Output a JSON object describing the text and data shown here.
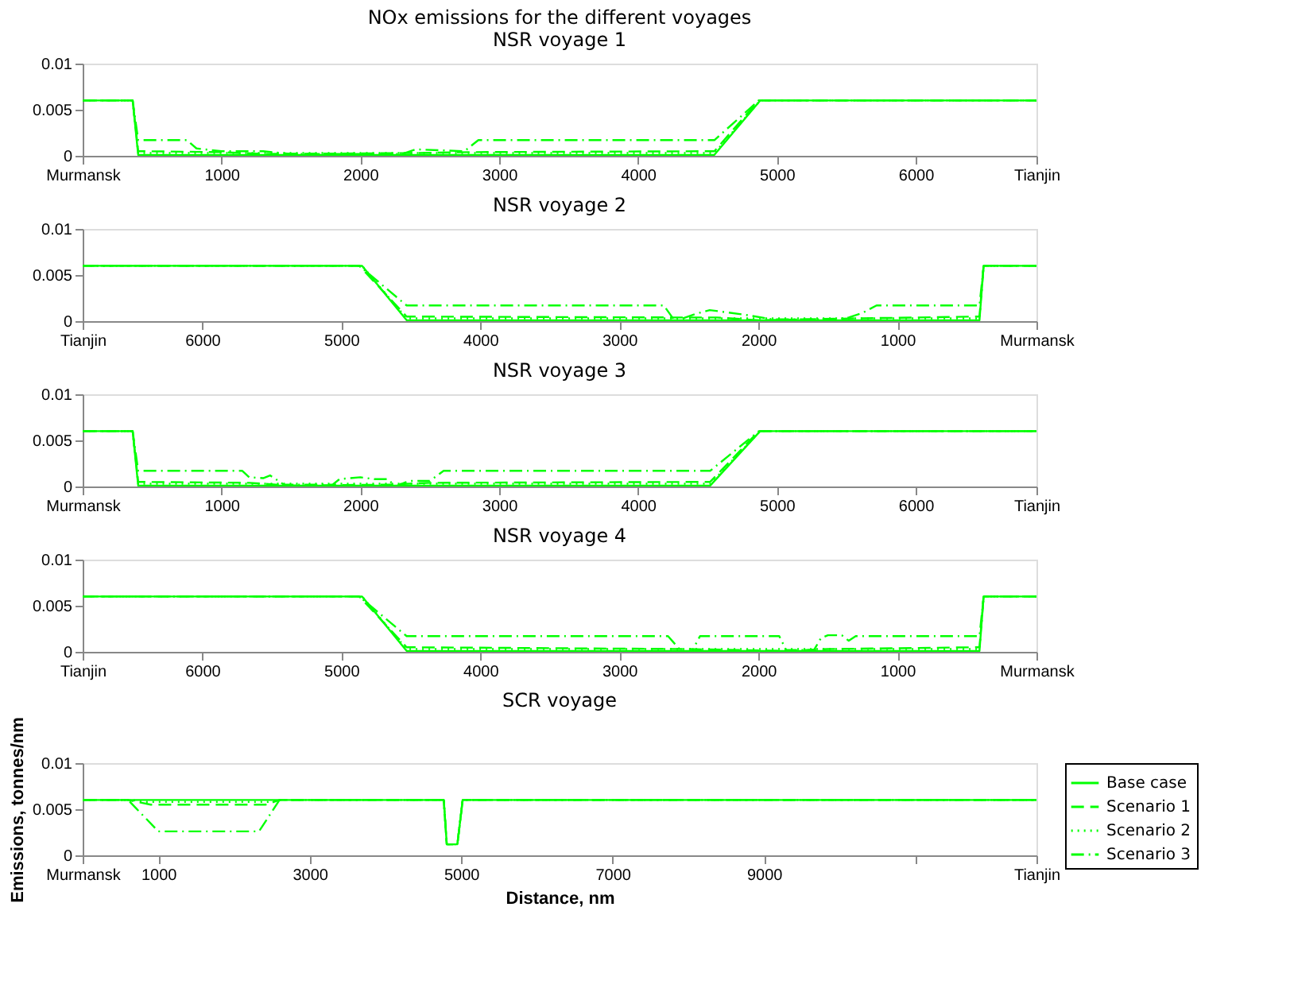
{
  "chart_data": [
    {
      "type": "line",
      "title": "NOx emissions for the different voyages",
      "subtitle": "NSR voyage 1",
      "xlim": [
        0,
        6870
      ],
      "xticks": [
        {
          "value": 0,
          "label": "Murmansk"
        },
        1000,
        2000,
        3000,
        4000,
        5000,
        6000,
        {
          "value": 6870,
          "label": "Tianjin"
        }
      ],
      "ylim": [
        0,
        0.01
      ],
      "yticks": [
        0,
        0.005,
        0.01
      ],
      "grid": false,
      "marker": "none",
      "series": [
        {
          "color": "#00ff00",
          "line_style": "solid",
          "x": [
            0,
            360,
            400,
            4550,
            4880,
            6870
          ],
          "values": [
            0.006,
            0.006,
            0.0001,
            0.0001,
            0.006,
            0.006
          ]
        },
        {
          "color": "#00ff00",
          "line_style": "dashed",
          "x": [
            0,
            360,
            400,
            1000,
            1300,
            2400,
            2800,
            4550,
            4870,
            6870
          ],
          "values": [
            0.006,
            0.006,
            0.0005,
            0.0004,
            0.0002,
            0.0003,
            0.0004,
            0.0005,
            0.006,
            0.006
          ]
        },
        {
          "color": "#00ff00",
          "line_style": "dotted",
          "x": [
            0,
            360,
            400,
            4550,
            4880,
            6870
          ],
          "values": [
            0.006,
            0.006,
            0.0003,
            0.0003,
            0.006,
            0.006
          ]
        },
        {
          "color": "#00ff00",
          "line_style": "dashdot",
          "x": [
            0,
            360,
            400,
            750,
            820,
            1000,
            1300,
            1500,
            2300,
            2400,
            2750,
            2850,
            4550,
            4870,
            6870
          ],
          "values": [
            0.006,
            0.006,
            0.0017,
            0.0017,
            0.0008,
            0.0005,
            0.0005,
            0.0002,
            0.0002,
            0.0007,
            0.0005,
            0.0017,
            0.0017,
            0.006,
            0.006
          ]
        }
      ]
    },
    {
      "type": "line",
      "title": "NSR voyage 2",
      "xlim": [
        6860,
        0
      ],
      "xticks": [
        {
          "value": 6860,
          "label": "Tianjin"
        },
        6000,
        5000,
        4000,
        3000,
        2000,
        1000,
        {
          "value": 0,
          "label": "Murmansk"
        }
      ],
      "ylim": [
        0,
        0.01
      ],
      "yticks": [
        0,
        0.005,
        0.01
      ],
      "grid": false,
      "marker": "none",
      "series": [
        {
          "color": "#00ff00",
          "line_style": "solid",
          "x": [
            0,
            380,
            410,
            4530,
            4850,
            6860
          ],
          "values": [
            0.006,
            0.006,
            0.0001,
            0.0001,
            0.006,
            0.006
          ]
        },
        {
          "color": "#00ff00",
          "line_style": "dashed",
          "x": [
            0,
            380,
            410,
            1300,
            2000,
            2300,
            2600,
            4530,
            4870,
            6860
          ],
          "values": [
            0.006,
            0.006,
            0.0005,
            0.0003,
            0.0001,
            0.0004,
            0.0004,
            0.0005,
            0.006,
            0.006
          ]
        },
        {
          "color": "#00ff00",
          "line_style": "dotted",
          "x": [
            0,
            380,
            410,
            4530,
            4850,
            6860
          ],
          "values": [
            0.006,
            0.006,
            0.0003,
            0.0003,
            0.006,
            0.006
          ]
        },
        {
          "color": "#00ff00",
          "line_style": "dashdot",
          "x": [
            0,
            380,
            410,
            1150,
            1250,
            1350,
            1450,
            1900,
            2100,
            2350,
            2450,
            2600,
            2680,
            4530,
            4870,
            6860
          ],
          "values": [
            0.006,
            0.006,
            0.0017,
            0.0017,
            0.0009,
            0.0004,
            0.0002,
            0.0002,
            0.0007,
            0.0012,
            0.0008,
            0.0,
            0.0017,
            0.0017,
            0.006,
            0.006
          ]
        }
      ]
    },
    {
      "type": "line",
      "title": "NSR voyage 3",
      "xlim": [
        0,
        6870
      ],
      "xticks": [
        {
          "value": 0,
          "label": "Murmansk"
        },
        1000,
        2000,
        3000,
        4000,
        5000,
        6000,
        {
          "value": 6870,
          "label": "Tianjin"
        }
      ],
      "ylim": [
        0,
        0.01
      ],
      "yticks": [
        0,
        0.005,
        0.01
      ],
      "grid": false,
      "marker": "none",
      "series": [
        {
          "color": "#00ff00",
          "line_style": "solid",
          "x": [
            0,
            360,
            400,
            4520,
            4880,
            6870
          ],
          "values": [
            0.006,
            0.006,
            0.0001,
            0.0001,
            0.006,
            0.006
          ]
        },
        {
          "color": "#00ff00",
          "line_style": "dashed",
          "x": [
            0,
            360,
            400,
            1200,
            1500,
            2200,
            2500,
            4520,
            4870,
            6870
          ],
          "values": [
            0.006,
            0.006,
            0.0005,
            0.0004,
            0.0001,
            0.0002,
            0.0004,
            0.0005,
            0.006,
            0.006
          ]
        },
        {
          "color": "#00ff00",
          "line_style": "dotted",
          "x": [
            0,
            360,
            400,
            4520,
            4880,
            6870
          ],
          "values": [
            0.006,
            0.006,
            0.0003,
            0.0003,
            0.006,
            0.006
          ]
        },
        {
          "color": "#00ff00",
          "line_style": "dashdot",
          "x": [
            0,
            360,
            400,
            1150,
            1200,
            1300,
            1350,
            1450,
            1800,
            1850,
            2000,
            2100,
            2200,
            2250,
            2350,
            2500,
            2600,
            4520,
            4870,
            6870
          ],
          "values": [
            0.006,
            0.006,
            0.0017,
            0.0017,
            0.001,
            0.0009,
            0.0012,
            0.0002,
            0.0002,
            0.0008,
            0.001,
            0.0008,
            0.0008,
            0.0,
            0.0006,
            0.0006,
            0.0017,
            0.0017,
            0.006,
            0.006
          ]
        }
      ]
    },
    {
      "type": "line",
      "title": "NSR voyage 4",
      "xlim": [
        6860,
        0
      ],
      "xticks": [
        {
          "value": 6860,
          "label": "Tianjin"
        },
        6000,
        5000,
        4000,
        3000,
        2000,
        1000,
        {
          "value": 0,
          "label": "Murmansk"
        }
      ],
      "ylim": [
        0,
        0.01
      ],
      "yticks": [
        0,
        0.005,
        0.01
      ],
      "grid": false,
      "marker": "none",
      "series": [
        {
          "color": "#00ff00",
          "line_style": "solid",
          "x": [
            0,
            380,
            410,
            4530,
            4850,
            6860
          ],
          "values": [
            0.006,
            0.006,
            0.0001,
            0.0001,
            0.006,
            0.006
          ]
        },
        {
          "color": "#00ff00",
          "line_style": "dashed",
          "x": [
            0,
            380,
            410,
            1500,
            1800,
            2500,
            4530,
            4870,
            6860
          ],
          "values": [
            0.006,
            0.006,
            0.0005,
            0.0003,
            0.0001,
            0.0003,
            0.0005,
            0.006,
            0.006
          ]
        },
        {
          "color": "#00ff00",
          "line_style": "dotted",
          "x": [
            0,
            380,
            410,
            4530,
            4850,
            6860
          ],
          "values": [
            0.006,
            0.006,
            0.0003,
            0.0003,
            0.006,
            0.006
          ]
        },
        {
          "color": "#00ff00",
          "line_style": "dashdot",
          "x": [
            0,
            380,
            410,
            1300,
            1350,
            1400,
            1500,
            1550,
            1600,
            1800,
            1850,
            2420,
            2480,
            2550,
            2650,
            4530,
            4870,
            6860
          ],
          "values": [
            0.006,
            0.006,
            0.0017,
            0.0017,
            0.0012,
            0.0018,
            0.0018,
            0.0015,
            0.0002,
            0.0002,
            0.0017,
            0.0017,
            0.0,
            0.0,
            0.0017,
            0.0017,
            0.006,
            0.006
          ]
        }
      ]
    },
    {
      "type": "line",
      "title": "SCR voyage",
      "xlabel": "Distance, nm",
      "ylabel": "Emissions, tonnes/nm",
      "xlim": [
        0,
        12600
      ],
      "xticks": [
        {
          "value": 0,
          "label": "Murmansk"
        },
        1000,
        3000,
        5000,
        7000,
        9000,
        {
          "value": 11000,
          "label": null
        },
        {
          "value": 12600,
          "label": "Tianjin"
        }
      ],
      "ylim": [
        0,
        0.01
      ],
      "yticks": [
        0,
        0.005,
        0.01
      ],
      "grid": false,
      "marker": "none",
      "legend": "right",
      "series": [
        {
          "name": "Base case",
          "color": "#00ff00",
          "line_style": "solid",
          "x": [
            0,
            4770,
            4810,
            4950,
            5020,
            12600
          ],
          "values": [
            0.006,
            0.006,
            0.0012,
            0.0012,
            0.006,
            0.006
          ]
        },
        {
          "name": "Scenario 1",
          "color": "#00ff00",
          "line_style": "dashed",
          "x": [
            0,
            600,
            900,
            2420,
            2600,
            4770,
            4810,
            4950,
            5020,
            12600
          ],
          "values": [
            0.006,
            0.006,
            0.0055,
            0.0055,
            0.006,
            0.006,
            0.0012,
            0.0012,
            0.006,
            0.006
          ]
        },
        {
          "name": "Scenario 2",
          "color": "#00ff00",
          "line_style": "dotted",
          "x": [
            0,
            650,
            800,
            2450,
            2600,
            4770,
            4810,
            4950,
            5020,
            12600
          ],
          "values": [
            0.006,
            0.006,
            0.0058,
            0.0058,
            0.006,
            0.006,
            0.0012,
            0.0012,
            0.006,
            0.006
          ]
        },
        {
          "name": "Scenario 3",
          "color": "#00ff00",
          "line_style": "dashdot",
          "x": [
            0,
            600,
            1000,
            2330,
            2600,
            4770,
            4810,
            4950,
            5020,
            12600
          ],
          "values": [
            0.006,
            0.006,
            0.0026,
            0.0026,
            0.006,
            0.006,
            0.0012,
            0.0012,
            0.006,
            0.006
          ]
        }
      ]
    }
  ]
}
